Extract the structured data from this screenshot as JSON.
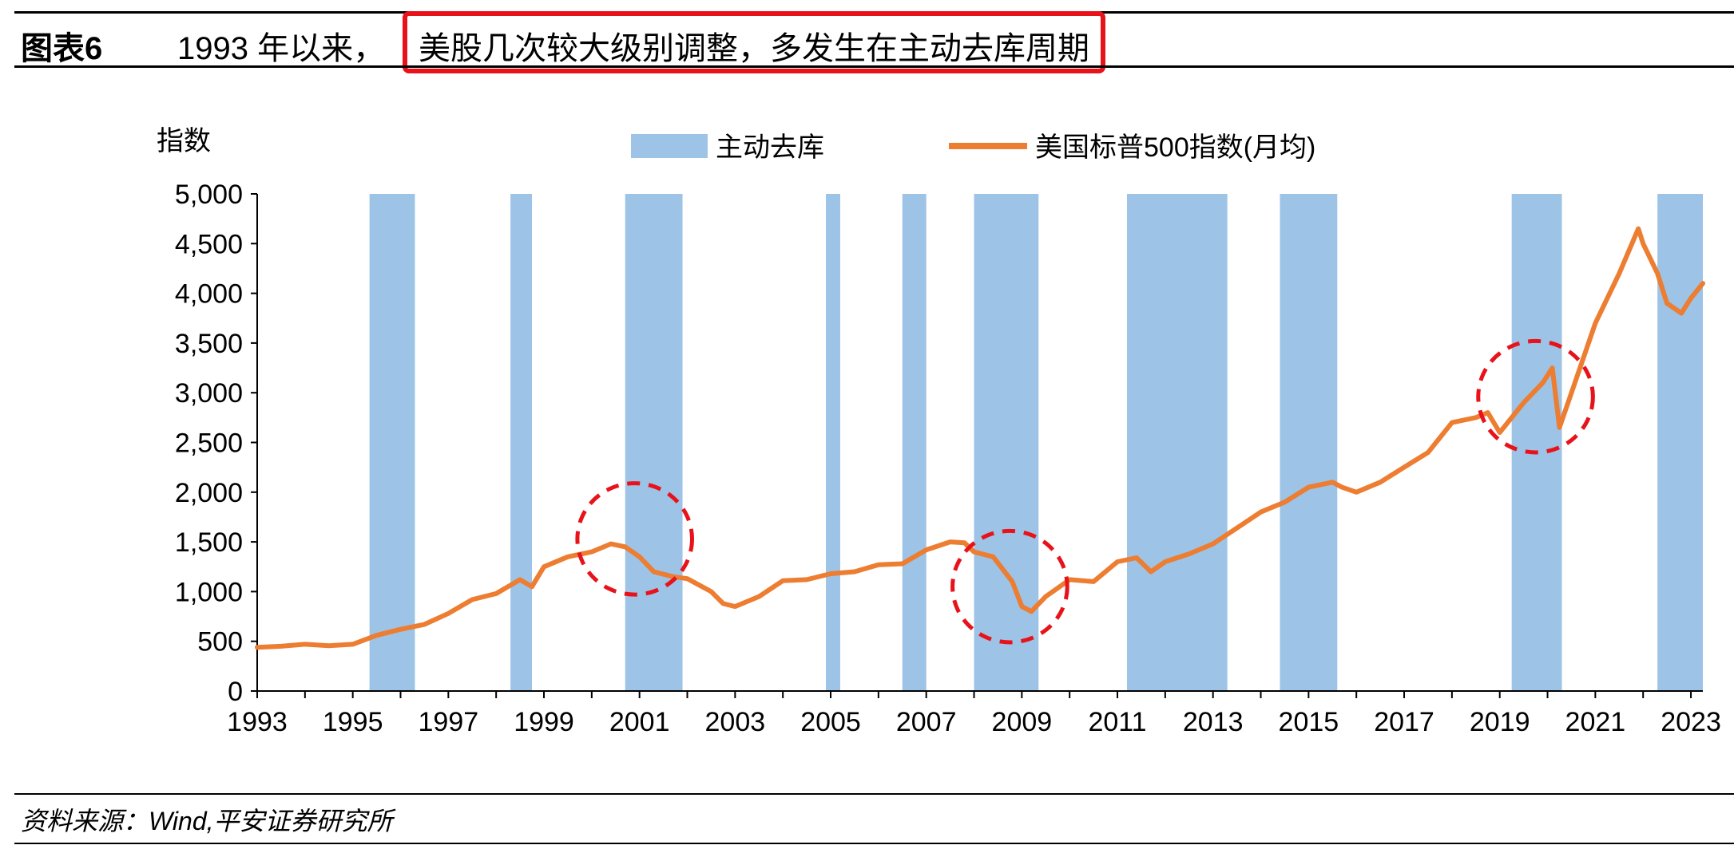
{
  "header": {
    "figure_label": "图表6",
    "title_prefix": "1993 年以来，",
    "title_highlight": "美股几次较大级别调整，多发生在主动去库周期",
    "highlight_color": "#e8121a"
  },
  "footer": {
    "source": "资料来源：Wind,平安证券研究所"
  },
  "chart_data": {
    "type": "line",
    "ylabel": "指数",
    "ylim": [
      0,
      5000
    ],
    "yticks": [
      0,
      500,
      1000,
      1500,
      2000,
      2500,
      3000,
      3500,
      4000,
      4500,
      5000
    ],
    "ytick_labels": [
      "0",
      "500",
      "1,000",
      "1,500",
      "2,000",
      "2,500",
      "3,000",
      "3,500",
      "4,000",
      "4,500",
      "5,000"
    ],
    "xlim": [
      1993.0,
      2023.25
    ],
    "xticks": [
      "1993",
      "1995",
      "1997",
      "1999",
      "2001",
      "2003",
      "2005",
      "2007",
      "2009",
      "2011",
      "2013",
      "2015",
      "2017",
      "2019",
      "2021",
      "2023"
    ],
    "legend": {
      "placement": "top-center",
      "entries": [
        {
          "name": "主动去库",
          "kind": "area",
          "color": "#9dc3e6"
        },
        {
          "name": "美国标普500指数(月均)",
          "kind": "line",
          "color": "#ed7d31"
        }
      ]
    },
    "shaded_periods": {
      "name": "主动去库",
      "color": "#9dc3e6",
      "ranges": [
        [
          1995.35,
          1996.3
        ],
        [
          1998.3,
          1998.75
        ],
        [
          2000.7,
          2001.9
        ],
        [
          2004.9,
          2005.2
        ],
        [
          2006.5,
          2007.0
        ],
        [
          2008.0,
          2009.35
        ],
        [
          2011.2,
          2013.3
        ],
        [
          2014.4,
          2015.6
        ],
        [
          2019.25,
          2020.3
        ],
        [
          2022.3,
          2023.25
        ]
      ]
    },
    "series": [
      {
        "name": "美国标普500指数(月均)",
        "color": "#ed7d31",
        "x": [
          1993.0,
          1993.5,
          1994.0,
          1994.5,
          1995.0,
          1995.5,
          1996.0,
          1996.5,
          1997.0,
          1997.5,
          1998.0,
          1998.5,
          1998.75,
          1999.0,
          1999.5,
          2000.0,
          2000.4,
          2000.7,
          2001.0,
          2001.3,
          2001.7,
          2002.0,
          2002.5,
          2002.75,
          2003.0,
          2003.5,
          2004.0,
          2004.5,
          2005.0,
          2005.5,
          2006.0,
          2006.5,
          2007.0,
          2007.5,
          2007.8,
          2008.0,
          2008.4,
          2008.8,
          2009.0,
          2009.2,
          2009.5,
          2010.0,
          2010.5,
          2011.0,
          2011.4,
          2011.7,
          2012.0,
          2012.5,
          2013.0,
          2013.5,
          2014.0,
          2014.5,
          2015.0,
          2015.5,
          2015.7,
          2016.0,
          2016.5,
          2017.0,
          2017.5,
          2018.0,
          2018.5,
          2018.75,
          2019.0,
          2019.5,
          2019.9,
          2020.1,
          2020.25,
          2020.5,
          2021.0,
          2021.5,
          2021.9,
          2022.0,
          2022.3,
          2022.5,
          2022.8,
          2023.0,
          2023.25
        ],
        "y": [
          440,
          450,
          470,
          455,
          470,
          560,
          620,
          670,
          780,
          920,
          980,
          1120,
          1050,
          1250,
          1350,
          1400,
          1480,
          1450,
          1350,
          1200,
          1150,
          1130,
          1000,
          880,
          850,
          950,
          1110,
          1120,
          1180,
          1200,
          1270,
          1280,
          1420,
          1500,
          1490,
          1400,
          1350,
          1100,
          850,
          800,
          950,
          1120,
          1100,
          1300,
          1340,
          1200,
          1300,
          1380,
          1480,
          1640,
          1800,
          1900,
          2050,
          2100,
          2050,
          2000,
          2100,
          2250,
          2400,
          2700,
          2750,
          2800,
          2600,
          2900,
          3100,
          3250,
          2650,
          3000,
          3700,
          4200,
          4650,
          4500,
          4200,
          3900,
          3800,
          3950,
          4100
        ]
      }
    ],
    "annotations": [
      {
        "kind": "dashed-circle",
        "color": "#e8121a",
        "cx": 2000.9,
        "cy": 1530,
        "rx_years": 1.2,
        "ry_value": 560
      },
      {
        "kind": "dashed-circle",
        "color": "#e8121a",
        "cx": 2008.75,
        "cy": 1050,
        "rx_years": 1.2,
        "ry_value": 560
      },
      {
        "kind": "dashed-circle",
        "color": "#e8121a",
        "cx": 2019.75,
        "cy": 2960,
        "rx_years": 1.2,
        "ry_value": 560
      }
    ]
  }
}
